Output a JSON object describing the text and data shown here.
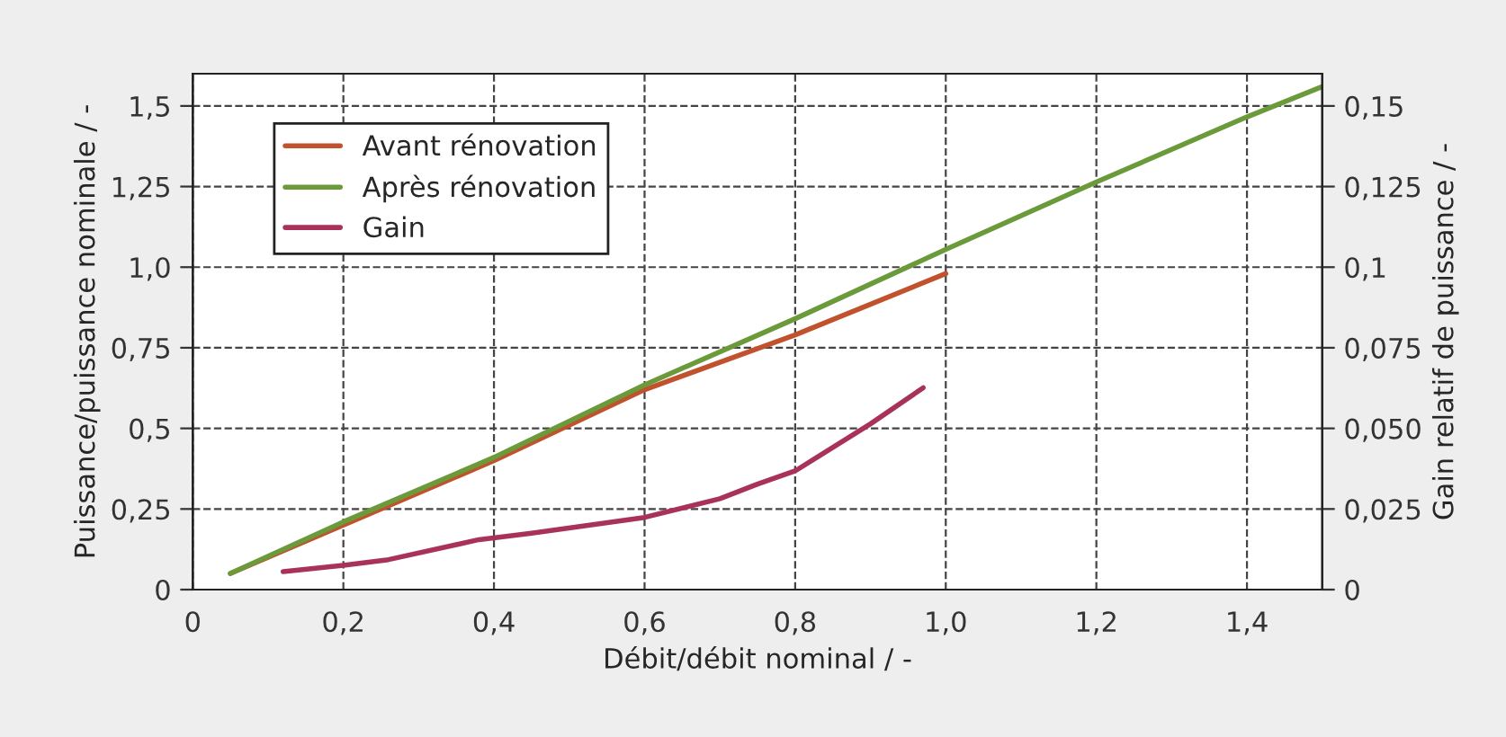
{
  "chart_data": {
    "type": "line",
    "xlabel": "Débit/débit nominal / -",
    "ylabel": "Puissance/puissance nominale / -",
    "y2label": "Gain relatif de puissance / -",
    "xlim": [
      0,
      1.5
    ],
    "xticks": [
      0,
      {
        "value": 0.2,
        "label": "0,2"
      },
      {
        "value": 0.4,
        "label": "0,4"
      },
      {
        "value": 0.6,
        "label": "0,6"
      },
      {
        "value": 0.8,
        "label": "0,8"
      },
      {
        "value": 1.0,
        "label": "1,0"
      },
      {
        "value": 1.2,
        "label": "1,2"
      },
      {
        "value": 1.4,
        "label": "1,4"
      }
    ],
    "ylim": [
      0,
      1.6
    ],
    "yticks": [
      0,
      {
        "value": 0.25,
        "label": "0,25"
      },
      {
        "value": 0.5,
        "label": "0,5"
      },
      {
        "value": 0.75,
        "label": "0,75"
      },
      {
        "value": 1.0,
        "label": "1,0"
      },
      {
        "value": 1.25,
        "label": "1,25"
      },
      {
        "value": 1.5,
        "label": "1,5"
      }
    ],
    "y2lim": [
      0,
      0.16
    ],
    "y2ticks": [
      0,
      {
        "value": 0.025,
        "label": "0,025"
      },
      {
        "value": 0.05,
        "label": "0,050"
      },
      {
        "value": 0.075,
        "label": "0,075"
      },
      {
        "value": 0.1,
        "label": "0,1"
      },
      {
        "value": 0.125,
        "label": "0,125"
      },
      {
        "value": 0.15,
        "label": "0,15"
      }
    ],
    "grid": true,
    "legend": "top left",
    "line_style": "solid",
    "series": [
      {
        "name": "Avant rénovation",
        "color": "#c0522e",
        "x": [
          0.05,
          0.2,
          0.4,
          0.6,
          0.8,
          1.0
        ],
        "values": [
          0.05,
          0.2,
          0.4,
          0.62,
          0.79,
          0.98
        ]
      },
      {
        "name": "Après rénovation",
        "color": "#6a9a3a",
        "x": [
          0.05,
          0.2,
          0.4,
          0.6,
          0.8,
          1.0,
          1.2,
          1.4,
          1.5
        ],
        "values": [
          0.05,
          0.21,
          0.41,
          0.635,
          0.84,
          1.055,
          1.264,
          1.466,
          1.56
        ]
      },
      {
        "name": "Gain",
        "color": "#a8325a",
        "axis": "y2",
        "x": [
          0.12,
          0.2,
          0.26,
          0.38,
          0.45,
          0.6,
          0.7,
          0.75,
          0.8,
          0.9,
          0.97
        ],
        "values": [
          0.0056,
          0.0075,
          0.0093,
          0.0155,
          0.0175,
          0.0224,
          0.0282,
          0.0327,
          0.0368,
          0.0514,
          0.0626
        ]
      }
    ]
  }
}
